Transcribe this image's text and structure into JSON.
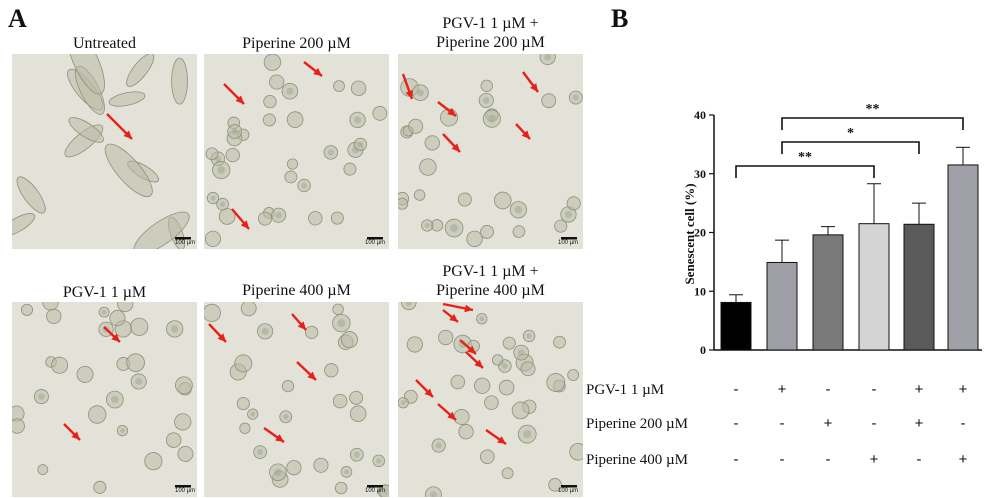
{
  "panel_a": {
    "letter": "A",
    "images": [
      {
        "title": "Untreated",
        "scale": "100 µm"
      },
      {
        "title": "Piperine 200 µM",
        "scale": "100 µm"
      },
      {
        "title_line1": "PGV-1 1 µM +",
        "title_line2": "Piperine 200 µM",
        "scale": "100 µm"
      },
      {
        "title": "PGV-1 1 µM",
        "scale": "100 µm"
      },
      {
        "title": "Piperine 400 µM",
        "scale": "100 µm"
      },
      {
        "title_line1": "PGV-1 1 µM +",
        "title_line2": "Piperine 400 µM",
        "scale": "100 µm"
      }
    ],
    "colors": {
      "arrow": "#e8201a",
      "background": "#e3e2d8",
      "cell": "#b9bba6"
    }
  },
  "panel_b": {
    "letter": "B",
    "treatment_rows": [
      {
        "label": "PGV-1 1 µM",
        "signs": [
          "-",
          "+",
          "-",
          "-",
          "+",
          "+"
        ]
      },
      {
        "label": "Piperine 200 µM",
        "signs": [
          "-",
          "-",
          "+",
          "-",
          "+",
          "-"
        ]
      },
      {
        "label": "Piperine 400 µM",
        "signs": [
          "-",
          "-",
          "-",
          "+",
          "-",
          "+"
        ]
      }
    ]
  },
  "chart_data": {
    "type": "bar",
    "title": "",
    "xlabel": "",
    "ylabel": "Senescent cell (%)",
    "ylim": [
      0,
      40
    ],
    "yticks": [
      0,
      10,
      20,
      30,
      40
    ],
    "values": [
      8.1,
      14.9,
      19.6,
      21.5,
      21.4,
      31.5
    ],
    "errors": [
      1.3,
      3.8,
      1.4,
      6.8,
      3.6,
      3.0
    ],
    "bar_colors": [
      "#000000",
      "#9e9ea6",
      "#7a7a7a",
      "#d4d4d4",
      "#5a5a5a",
      "#a0a0a8"
    ],
    "significance": [
      {
        "from": 0,
        "to": 3,
        "label": "**"
      },
      {
        "from": 1,
        "to": 4,
        "label": "*"
      },
      {
        "from": 1,
        "to": 5,
        "label": "**"
      }
    ],
    "grid": false,
    "legend": "none"
  }
}
